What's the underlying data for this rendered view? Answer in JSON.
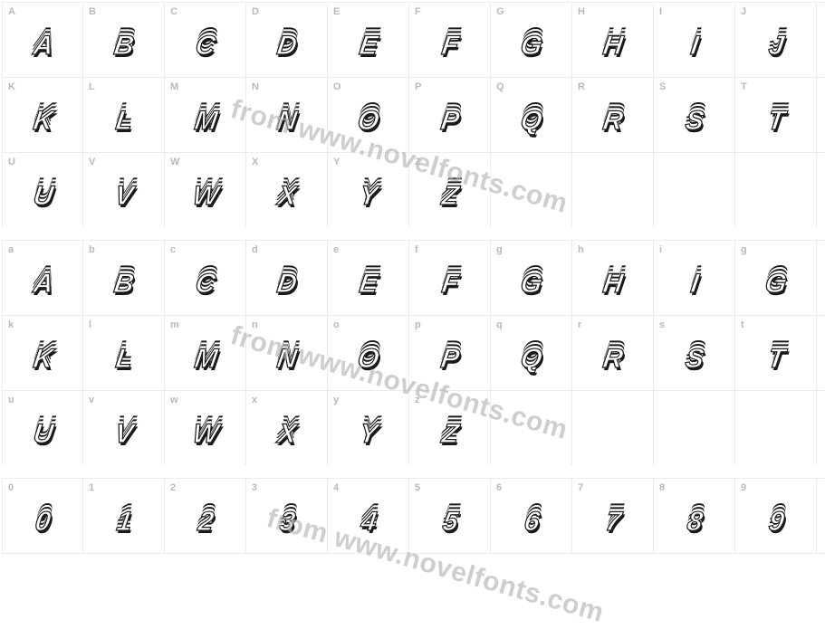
{
  "watermark_text": "from www.novelfonts.com",
  "watermark_color": "#b5b5b5",
  "cell_border_color": "#ececec",
  "key_color": "#b9b9b9",
  "glyph_stroke_color": "#1a1a1a",
  "background_color": "#ffffff",
  "rows": [
    {
      "keys": [
        "A",
        "B",
        "C",
        "D",
        "E",
        "F",
        "G",
        "H",
        "I",
        "J"
      ],
      "glyphs": [
        "A",
        "B",
        "C",
        "D",
        "E",
        "F",
        "G",
        "H",
        "I",
        "J"
      ]
    },
    {
      "keys": [
        "K",
        "L",
        "M",
        "N",
        "O",
        "P",
        "Q",
        "R",
        "S",
        "T"
      ],
      "glyphs": [
        "K",
        "L",
        "M",
        "N",
        "O",
        "P",
        "Q",
        "R",
        "S",
        "T"
      ]
    },
    {
      "keys": [
        "U",
        "V",
        "W",
        "X",
        "Y",
        "Z",
        "",
        "",
        "",
        ""
      ],
      "glyphs": [
        "U",
        "V",
        "W",
        "X",
        "Y",
        "Z",
        "",
        "",
        "",
        ""
      ]
    },
    {
      "keys": [
        "a",
        "b",
        "c",
        "d",
        "e",
        "f",
        "g",
        "h",
        "i",
        "g"
      ],
      "glyphs": [
        "A",
        "B",
        "C",
        "D",
        "E",
        "F",
        "G",
        "H",
        "I",
        "G"
      ]
    },
    {
      "keys": [
        "k",
        "l",
        "m",
        "n",
        "o",
        "p",
        "q",
        "r",
        "s",
        "t"
      ],
      "glyphs": [
        "K",
        "L",
        "M",
        "N",
        "O",
        "P",
        "Q",
        "R",
        "S",
        "T"
      ]
    },
    {
      "keys": [
        "u",
        "v",
        "w",
        "x",
        "y",
        "z",
        "",
        "",
        "",
        ""
      ],
      "glyphs": [
        "U",
        "V",
        "W",
        "X",
        "Y",
        "Z",
        "",
        "",
        "",
        ""
      ]
    },
    {
      "keys": [
        "0",
        "1",
        "2",
        "3",
        "4",
        "5",
        "6",
        "7",
        "8",
        "9"
      ],
      "glyphs": [
        "0",
        "1",
        "2",
        "3",
        "4",
        "5",
        "6",
        "7",
        "8",
        "9"
      ]
    }
  ],
  "row_groups": [
    [
      0,
      1,
      2
    ],
    [
      3,
      4,
      5
    ],
    [
      6
    ]
  ]
}
